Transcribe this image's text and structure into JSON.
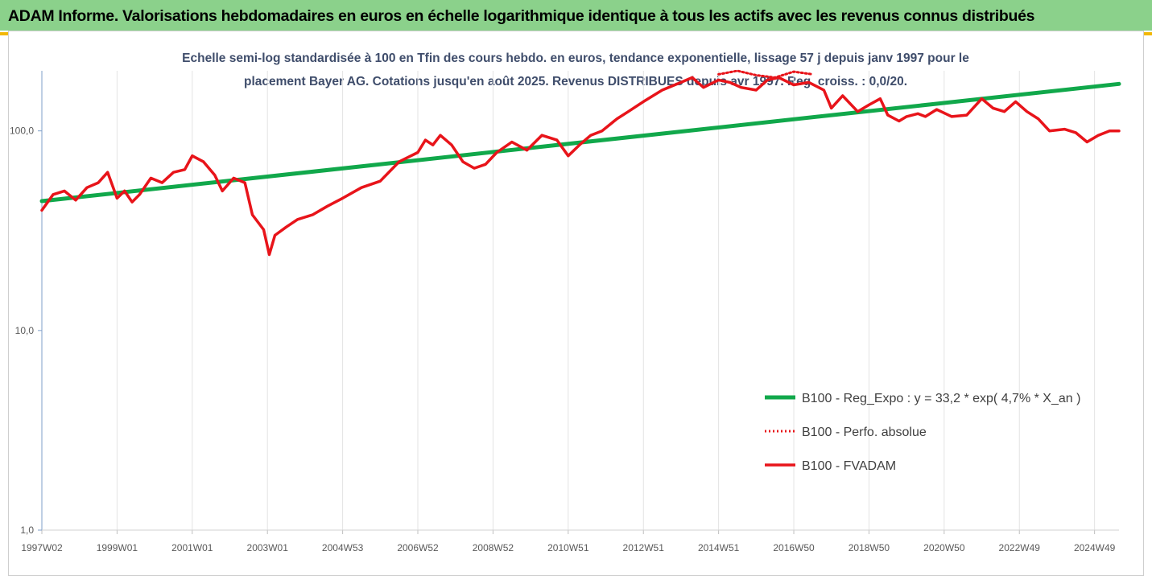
{
  "header": {
    "title": "ADAM Informe. Valorisations hebdomadaires en euros en échelle logarithmique identique à tous les actifs avec les revenus connus distribués"
  },
  "colors": {
    "header_bg": "#8bd18b",
    "accent": "#f2b705",
    "regression": "#11a84b",
    "performance": "#e8141a",
    "axis": "#7f9fc8"
  },
  "chart_data": {
    "type": "line",
    "title_line1": "Echelle semi-log standardisée à 100 en Tfin des cours hebdo. en euros, tendance exponentielle, lissage 57 j depuis janv 1997 pour le",
    "title_line2": "placement Bayer AG. Cotations jusqu'en août 2025. Revenus DISTRIBUES depuis avr 1997. Reg. croiss. : 0,0/20.",
    "y_scale": "log",
    "ylim": [
      1,
      200
    ],
    "y_ticks": [
      "1,0",
      "10,0",
      "100,0"
    ],
    "y_tick_values": [
      1,
      10,
      100
    ],
    "xlim": [
      1997.0,
      2025.65
    ],
    "x_tick_labels": [
      "1997W02",
      "1999W01",
      "2001W01",
      "2003W01",
      "2004W53",
      "2006W52",
      "2008W52",
      "2010W51",
      "2012W51",
      "2014W51",
      "2016W50",
      "2018W50",
      "2020W50",
      "2022W49",
      "2024W49"
    ],
    "x_tick_values": [
      1997.0,
      1999.0,
      2001.0,
      2003.0,
      2005.0,
      2007.0,
      2009.0,
      2011.0,
      2013.0,
      2015.0,
      2017.0,
      2019.0,
      2021.0,
      2023.0,
      2025.0
    ],
    "legend_position": "bottom-right",
    "grid": "vertical",
    "series": [
      {
        "name": "B100 - Reg_Expo : y = 33,2 * exp( 4,7% *  X_an )",
        "style": "solid-thick",
        "x": [
          1997.0,
          2025.65
        ],
        "y": [
          44.5,
          172
        ]
      },
      {
        "name": "B100 - Perfo. absolue",
        "style": "dotted",
        "x": [
          2015.0,
          2015.5,
          2016.0,
          2016.5,
          2017.0,
          2017.5
        ],
        "y": [
          192,
          200,
          190,
          185,
          198,
          192
        ]
      },
      {
        "name": "B100 - FVADAM",
        "style": "solid",
        "x": [
          1997.0,
          1997.3,
          1997.6,
          1997.9,
          1998.2,
          1998.5,
          1998.75,
          1999.0,
          1999.2,
          1999.4,
          1999.6,
          1999.9,
          2000.2,
          2000.5,
          2000.8,
          2001.0,
          2001.3,
          2001.6,
          2001.8,
          2002.1,
          2002.4,
          2002.6,
          2002.9,
          2003.05,
          2003.2,
          2003.5,
          2003.8,
          2004.2,
          2004.6,
          2005.0,
          2005.5,
          2006.0,
          2006.5,
          2007.0,
          2007.2,
          2007.4,
          2007.6,
          2007.9,
          2008.2,
          2008.5,
          2008.8,
          2009.1,
          2009.5,
          2009.9,
          2010.3,
          2010.7,
          2011.0,
          2011.3,
          2011.6,
          2011.9,
          2012.3,
          2012.6,
          2013.0,
          2013.5,
          2014.0,
          2014.3,
          2014.6,
          2015.0,
          2015.3,
          2015.6,
          2016.0,
          2016.3,
          2016.6,
          2017.0,
          2017.4,
          2017.8,
          2018.0,
          2018.3,
          2018.7,
          2019.0,
          2019.3,
          2019.5,
          2019.8,
          2020.0,
          2020.3,
          2020.5,
          2020.8,
          2021.2,
          2021.6,
          2022.0,
          2022.3,
          2022.6,
          2022.9,
          2023.2,
          2023.5,
          2023.8,
          2024.2,
          2024.5,
          2024.8,
          2025.1,
          2025.4,
          2025.65
        ],
        "y": [
          40,
          48,
          50,
          45,
          52,
          55,
          62,
          46,
          50,
          44,
          48,
          58,
          55,
          62,
          64,
          75,
          70,
          60,
          50,
          58,
          55,
          38,
          32,
          24,
          30,
          33,
          36,
          38,
          42,
          46,
          52,
          56,
          70,
          78,
          90,
          85,
          95,
          85,
          70,
          65,
          68,
          78,
          88,
          80,
          95,
          90,
          75,
          85,
          95,
          100,
          115,
          125,
          140,
          160,
          175,
          185,
          165,
          180,
          175,
          165,
          160,
          180,
          185,
          170,
          175,
          160,
          130,
          150,
          125,
          135,
          145,
          120,
          112,
          118,
          122,
          118,
          128,
          118,
          120,
          145,
          130,
          125,
          140,
          125,
          115,
          100,
          102,
          98,
          88,
          95,
          100,
          100
        ]
      }
    ]
  }
}
